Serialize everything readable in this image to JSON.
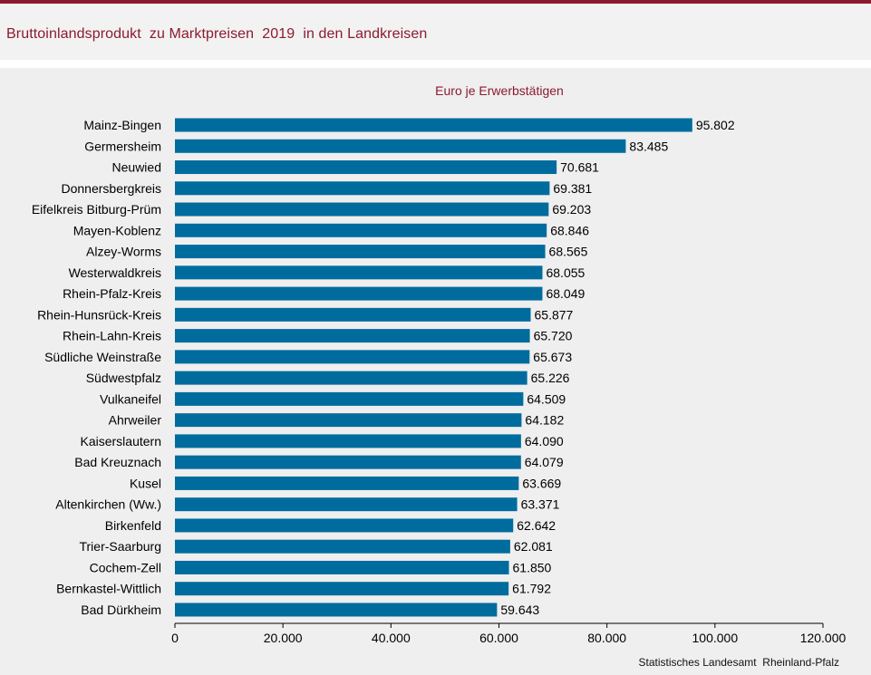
{
  "page": {
    "title": "Bruttoinlandsprodukt  zu Marktpreisen  2019  in den Landkreisen",
    "source": "Statistisches Landesamt  Rheinland-Pfalz"
  },
  "colors": {
    "accent": "#8c1a2e",
    "bar": "#006c9e"
  },
  "chart_data": {
    "type": "bar",
    "orientation": "horizontal",
    "title": "Euro je Erwerbstätigen",
    "categories": [
      "Mainz-Bingen",
      "Germersheim",
      "Neuwied",
      "Donnersbergkreis",
      "Eifelkreis Bitburg-Prüm",
      "Mayen-Koblenz",
      "Alzey-Worms",
      "Westerwaldkreis",
      "Rhein-Pfalz-Kreis",
      "Rhein-Hunsrück-Kreis",
      "Rhein-Lahn-Kreis",
      "Südliche Weinstraße",
      "Südwestpfalz",
      "Vulkaneifel",
      "Ahrweiler",
      "Kaiserslautern",
      "Bad Kreuznach",
      "Kusel",
      "Altenkirchen (Ww.)",
      "Birkenfeld",
      "Trier-Saarburg",
      "Cochem-Zell",
      "Bernkastel-Wittlich",
      "Bad Dürkheim"
    ],
    "values": [
      95802,
      83485,
      70681,
      69381,
      69203,
      68846,
      68565,
      68055,
      68049,
      65877,
      65720,
      65673,
      65226,
      64509,
      64182,
      64090,
      64079,
      63669,
      63371,
      62642,
      62081,
      61850,
      61792,
      59643
    ],
    "value_labels": [
      "95.802",
      "83.485",
      "70.681",
      "69.381",
      "69.203",
      "68.846",
      "68.565",
      "68.055",
      "68.049",
      "65.877",
      "65.720",
      "65.673",
      "65.226",
      "64.509",
      "64.182",
      "64.090",
      "64.079",
      "63.669",
      "63.371",
      "62.642",
      "62.081",
      "61.850",
      "61.792",
      "59.643"
    ],
    "xlim": [
      0,
      120000
    ],
    "xticks": [
      0,
      20000,
      40000,
      60000,
      80000,
      100000,
      120000
    ],
    "xtick_labels": [
      "0",
      "20.000",
      "40.000",
      "60.000",
      "80.000",
      "100.000",
      "120.000"
    ],
    "grid": false,
    "legend": "none"
  }
}
